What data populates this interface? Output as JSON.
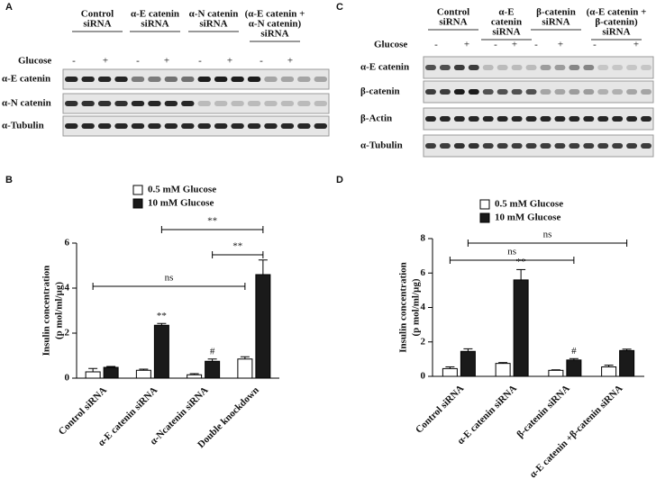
{
  "panel_labels": [
    "A",
    "B",
    "C",
    "D"
  ],
  "blots": [
    {
      "headers": [
        [
          "Control",
          "siRNA"
        ],
        [
          "α-E catenin",
          "siRNA"
        ],
        [
          "α-N catenin",
          "siRNA"
        ],
        [
          "(α-E catenin +",
          "α-N catenin)",
          "siRNA"
        ]
      ],
      "glucose_label": "Glucose",
      "glucose": [
        "-",
        "+",
        "-",
        "+",
        "-",
        "+",
        "-",
        "+"
      ],
      "rows": [
        "α-E catenin",
        "α-N catenin",
        "α-Tubulin"
      ]
    },
    {
      "headers": [
        [
          "Control",
          "siRNA"
        ],
        [
          "α-E",
          "catenin",
          "siRNA"
        ],
        [
          "β-catenin",
          "siRNA"
        ],
        [
          "(α-E catenin +",
          "β-catenin)",
          "siRNA"
        ]
      ],
      "glucose_label": "Glucose",
      "glucose": [
        "-",
        "+",
        "-",
        "+",
        "-",
        "+",
        "-",
        "+"
      ],
      "rows": [
        "α-E catenin",
        "β-catenin",
        "β-Actin",
        "α-Tubulin"
      ]
    }
  ],
  "chart_data": [
    {
      "type": "bar",
      "y_label": [
        "Insulin concentration",
        "(p mol/ml/µg)"
      ],
      "categories": [
        "Control siRNA",
        "α-E catenin siRNA",
        "α-Ncatenin siRNA",
        "Double knockdown"
      ],
      "series": [
        {
          "name": "0.5 mM Glucose",
          "color": "#ffffff",
          "values": [
            0.28,
            0.35,
            0.15,
            0.85
          ],
          "errors": [
            0.15,
            0.05,
            0.05,
            0.1
          ]
        },
        {
          "name": "10 mM Glucose",
          "color": "#1a1a1a",
          "values": [
            0.48,
            2.35,
            0.75,
            4.6
          ],
          "errors": [
            0.04,
            0.08,
            0.1,
            0.65
          ]
        }
      ],
      "ylim": [
        0,
        6
      ],
      "yticks": [
        0,
        2,
        4,
        6
      ],
      "annotations": [
        "**",
        "#"
      ],
      "brackets": [
        "ns",
        "**",
        "**"
      ]
    },
    {
      "type": "bar",
      "y_label": [
        "Insulin concentration",
        "(p mol/ml/µg)"
      ],
      "categories": [
        "Control siRNA",
        "α-E catenin siRNA",
        "β-catenin siRNA",
        "α-E catenin +β-catenin siRNA"
      ],
      "series": [
        {
          "name": "0.5 mM Glucose",
          "color": "#ffffff",
          "values": [
            0.45,
            0.75,
            0.35,
            0.55
          ],
          "errors": [
            0.1,
            0.05,
            0.03,
            0.1
          ]
        },
        {
          "name": "10 mM Glucose",
          "color": "#1a1a1a",
          "values": [
            1.45,
            5.6,
            0.95,
            1.5
          ],
          "errors": [
            0.15,
            0.6,
            0.08,
            0.08
          ]
        }
      ],
      "ylim": [
        0,
        8
      ],
      "yticks": [
        0,
        2,
        4,
        6,
        8
      ],
      "annotations": [
        "**",
        "#"
      ],
      "brackets": [
        "ns",
        "ns"
      ]
    }
  ]
}
